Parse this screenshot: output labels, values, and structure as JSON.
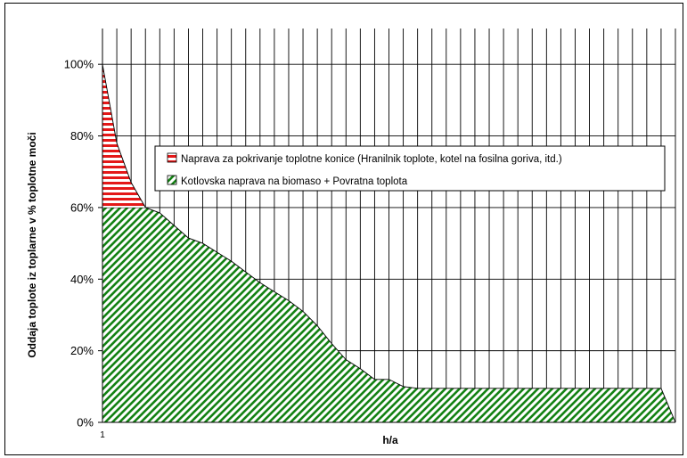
{
  "chart_data": {
    "type": "area",
    "title": "",
    "xlabel": "h/a",
    "ylabel": "Oddaja toplote iz toplarne v % toplotne moči",
    "x_tick_labels": [
      "1"
    ],
    "y_ticks": [
      0,
      20,
      40,
      60,
      80,
      100
    ],
    "y_tick_labels": [
      "0%",
      "20%",
      "40%",
      "60%",
      "80%",
      "100%"
    ],
    "ylim": [
      0,
      110
    ],
    "xlim": [
      0,
      40
    ],
    "grid": true,
    "legend_position": "top-right",
    "x": [
      0,
      1,
      2,
      3,
      4,
      5,
      6,
      7,
      8,
      9,
      10,
      11,
      12,
      13,
      14,
      15,
      16,
      17,
      18,
      19,
      20,
      21,
      22,
      23,
      24,
      25,
      26,
      27,
      28,
      29,
      30,
      31,
      32,
      33,
      34,
      35,
      36,
      37,
      38,
      39,
      40
    ],
    "series": [
      {
        "name": "Naprava za pokrivanje toplotne konice (Hranilnik toplote, kotel na fosilna goriva, itd.)",
        "color": "#ff0000",
        "pattern": "horizontal-lines",
        "values": [
          100,
          78,
          67,
          60,
          0,
          0,
          0,
          0,
          0,
          0,
          0,
          0,
          0,
          0,
          0,
          0,
          0,
          0,
          0,
          0,
          0,
          0,
          0,
          0,
          0,
          0,
          0,
          0,
          0,
          0,
          0,
          0,
          0,
          0,
          0,
          0,
          0,
          0,
          0,
          0,
          0
        ]
      },
      {
        "name": "Kotlovska naprava na biomaso + Povratna toplota",
        "color": "#008000",
        "pattern": "diagonal-lines",
        "values": [
          60,
          60,
          60,
          60,
          58.5,
          55,
          51.5,
          50,
          47.5,
          45,
          42,
          39,
          36.5,
          34,
          31,
          27,
          22,
          17.5,
          15,
          12,
          12,
          10,
          9.5,
          9.5,
          9.5,
          9.5,
          9.5,
          9.5,
          9.5,
          9.5,
          9.5,
          9.5,
          9.5,
          9.5,
          9.5,
          9.5,
          9.5,
          9.5,
          9.5,
          9.5,
          0
        ]
      }
    ]
  }
}
